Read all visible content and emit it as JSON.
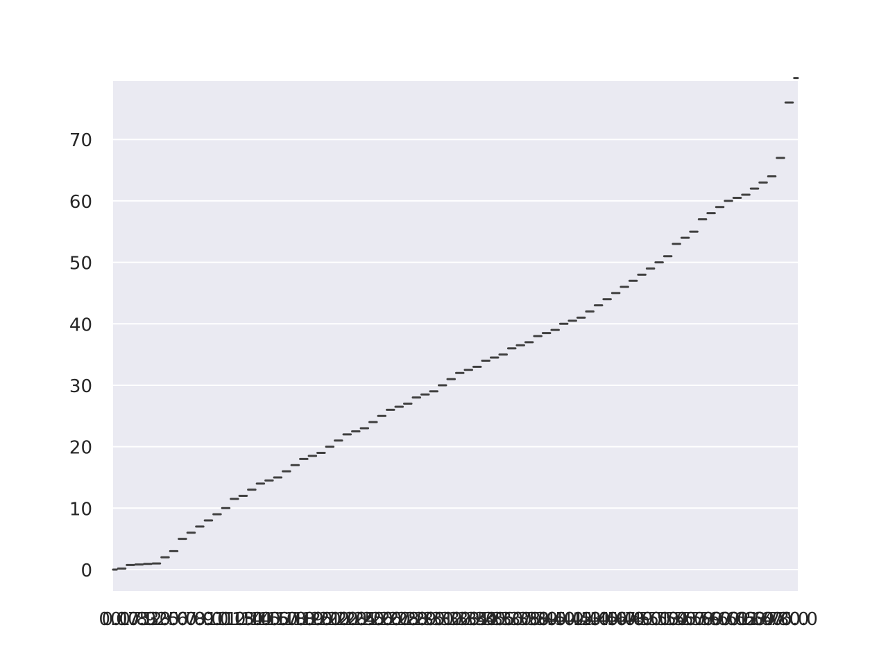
{
  "chart_data": {
    "type": "box",
    "title": "",
    "xlabel": "",
    "ylabel": "",
    "categories": [
      "0.0",
      "0.17",
      "0.75",
      "0.83",
      "0.92",
      "1.0",
      "2.0",
      "3.0",
      "5.0",
      "6.0",
      "7.0",
      "8.0",
      "9.0",
      "10.0",
      "11.5",
      "12.0",
      "13.0",
      "14.0",
      "14.5",
      "15.0",
      "16.0",
      "17.0",
      "18.0",
      "18.5",
      "19.0",
      "20.0",
      "21.0",
      "22.0",
      "22.5",
      "23.0",
      "24.0",
      "25.0",
      "26.0",
      "26.5",
      "27.0",
      "28.0",
      "28.5",
      "29.0",
      "30.0",
      "31.0",
      "32.0",
      "32.5",
      "33.0",
      "34.0",
      "34.5",
      "35.0",
      "36.0",
      "36.5",
      "37.0",
      "38.0",
      "38.5",
      "39.0",
      "40.0",
      "40.5",
      "41.0",
      "42.0",
      "43.0",
      "44.0",
      "45.0",
      "46.0",
      "47.0",
      "48.0",
      "49.0",
      "50.0",
      "51.0",
      "53.0",
      "54.0",
      "55.0",
      "57.0",
      "58.0",
      "59.0",
      "60.0",
      "60.5",
      "61.0",
      "62.0",
      "63.0",
      "64.0",
      "67.0",
      "76.0",
      "80.0"
    ],
    "values": [
      0.0,
      0.17,
      0.75,
      0.83,
      0.92,
      1.0,
      2.0,
      3.0,
      5.0,
      6.0,
      7.0,
      8.0,
      9.0,
      10.0,
      11.5,
      12.0,
      13.0,
      14.0,
      14.5,
      15.0,
      16.0,
      17.0,
      18.0,
      18.5,
      19.0,
      20.0,
      21.0,
      22.0,
      22.5,
      23.0,
      24.0,
      25.0,
      26.0,
      26.5,
      27.0,
      28.0,
      28.5,
      29.0,
      30.0,
      31.0,
      32.0,
      32.5,
      33.0,
      34.0,
      34.5,
      35.0,
      36.0,
      36.5,
      37.0,
      38.0,
      38.5,
      39.0,
      40.0,
      40.5,
      41.0,
      42.0,
      43.0,
      44.0,
      45.0,
      46.0,
      47.0,
      48.0,
      49.0,
      50.0,
      51.0,
      53.0,
      54.0,
      55.0,
      57.0,
      58.0,
      59.0,
      60.0,
      60.5,
      61.0,
      62.0,
      63.0,
      64.0,
      67.0,
      76.0,
      80.0
    ],
    "ylim": [
      -3.5,
      79.5
    ],
    "yticks": [
      0,
      10,
      20,
      30,
      40,
      50,
      60,
      70
    ],
    "grid": true,
    "legend": "none",
    "colors": {
      "background": "#EAEAF2",
      "grid": "#FFFFFF",
      "mark": "#3F3F3F",
      "text": "#262626"
    }
  }
}
